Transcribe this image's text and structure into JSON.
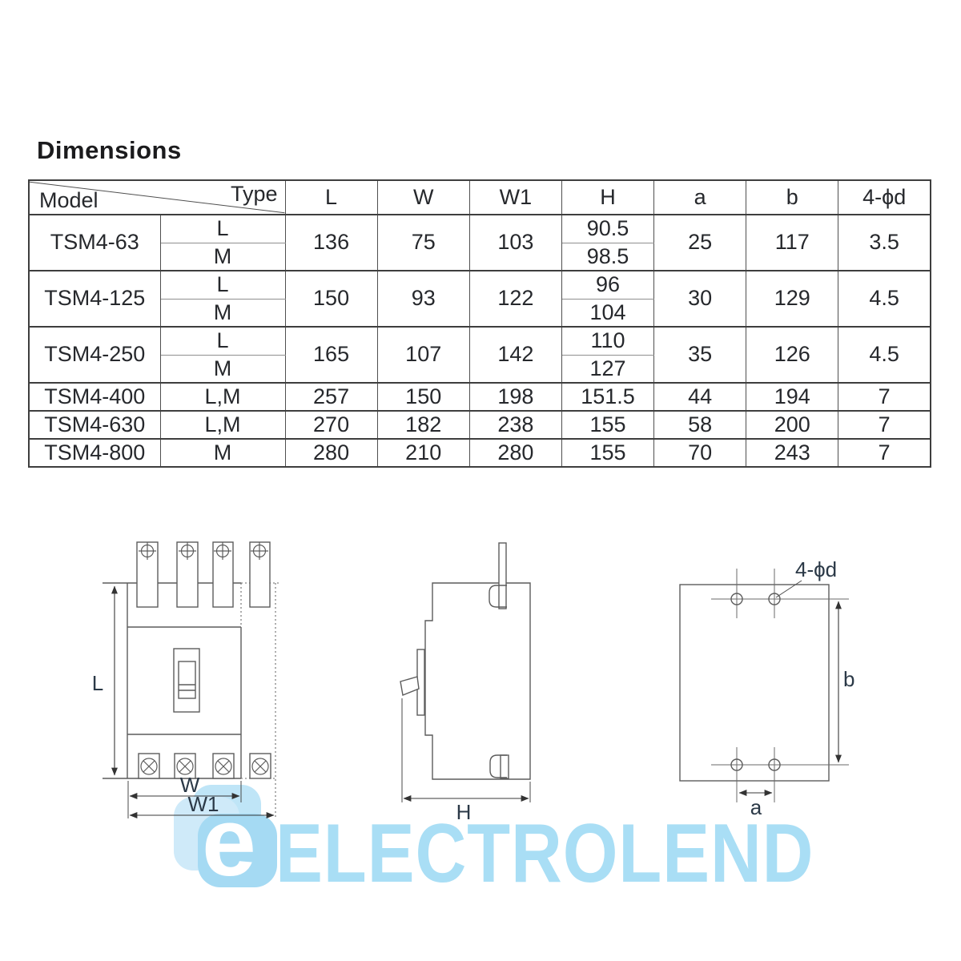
{
  "title": "Dimensions",
  "table": {
    "corner": {
      "top_right": "Type",
      "bottom_left": "Model"
    },
    "columns": [
      "L",
      "W",
      "W1",
      "H",
      "a",
      "b",
      "4-ϕd"
    ],
    "groups": [
      {
        "model": "TSM4-63",
        "types": [
          "L",
          "M"
        ],
        "L": "136",
        "W": "75",
        "W1": "103",
        "H": [
          "90.5",
          "98.5"
        ],
        "a": "25",
        "b": "117",
        "d": "3.5"
      },
      {
        "model": "TSM4-125",
        "types": [
          "L",
          "M"
        ],
        "L": "150",
        "W": "93",
        "W1": "122",
        "H": [
          "96",
          "104"
        ],
        "a": "30",
        "b": "129",
        "d": "4.5"
      },
      {
        "model": "TSM4-250",
        "types": [
          "L",
          "M"
        ],
        "L": "165",
        "W": "107",
        "W1": "142",
        "H": [
          "110",
          "127"
        ],
        "a": "35",
        "b": "126",
        "d": "4.5"
      },
      {
        "model": "TSM4-400",
        "types": [
          "L,M"
        ],
        "L": "257",
        "W": "150",
        "W1": "198",
        "H": [
          "151.5"
        ],
        "a": "44",
        "b": "194",
        "d": "7"
      },
      {
        "model": "TSM4-630",
        "types": [
          "L,M"
        ],
        "L": "270",
        "W": "182",
        "W1": "238",
        "H": [
          "155"
        ],
        "a": "58",
        "b": "200",
        "d": "7"
      },
      {
        "model": "TSM4-800",
        "types": [
          "M"
        ],
        "L": "280",
        "W": "210",
        "W1": "280",
        "H": [
          "155"
        ],
        "a": "70",
        "b": "243",
        "d": "7"
      }
    ]
  },
  "drawings": {
    "front": {
      "height_label": "L",
      "width_label": "W",
      "width1_label": "W1"
    },
    "side": {
      "depth_label": "H"
    },
    "mount": {
      "pitch_a_label": "a",
      "pitch_b_label": "b",
      "holes_label": "4-ϕd"
    }
  },
  "watermark": {
    "text": "ELECTROLEND",
    "logo_letter": "e",
    "color": "#a9def5"
  }
}
